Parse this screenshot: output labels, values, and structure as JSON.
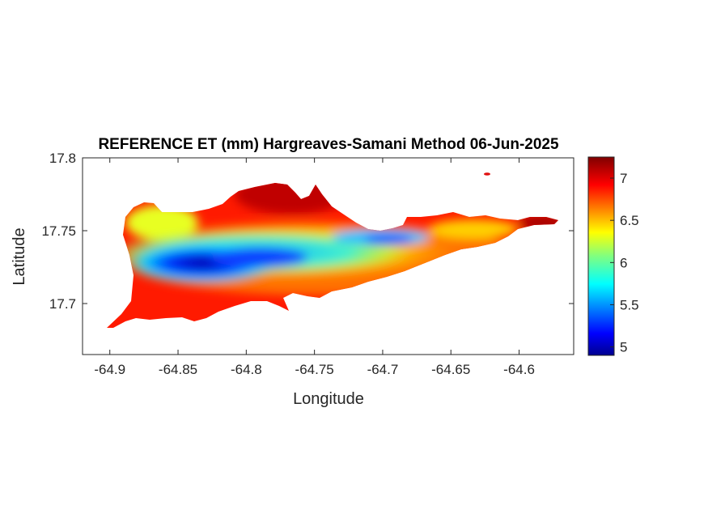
{
  "figure": {
    "title": "REFERENCE ET (mm) Hargreaves-Samani Method  06-Jun-2025",
    "xlabel": "Longitude",
    "ylabel": "Latitude"
  },
  "axes": {
    "x_ticks": [
      -64.9,
      -64.85,
      -64.8,
      -64.75,
      -64.7,
      -64.65,
      -64.6
    ],
    "x_tick_labels": [
      "-64.9",
      "-64.85",
      "-64.8",
      "-64.75",
      "-64.7",
      "-64.65",
      "-64.6"
    ],
    "y_ticks": [
      17.8,
      17.75,
      17.7
    ],
    "y_tick_labels": [
      "17.8",
      "17.75",
      "17.7"
    ],
    "xlim": [
      -64.92,
      -64.56
    ],
    "ylim": [
      17.665,
      17.8
    ]
  },
  "colorbar": {
    "colormap": "jet",
    "range": [
      4.9,
      7.25
    ],
    "ticks": [
      5,
      5.5,
      6,
      6.5,
      7
    ],
    "tick_labels": [
      "5",
      "5.5",
      "6",
      "6.5",
      "7"
    ]
  },
  "colors": {
    "jet_dark_red": "#800000",
    "jet_red": "#ff2000",
    "jet_yellow": "#ffe000",
    "jet_cyan": "#20e0ff",
    "jet_blue": "#0040ff",
    "jet_dark_blue": "#00008f"
  },
  "chart_data": {
    "type": "heatmap",
    "title": "REFERENCE ET (mm) Hargreaves-Samani Method  06-Jun-2025",
    "xlabel": "Longitude",
    "ylabel": "Latitude",
    "xlim": [
      -64.92,
      -64.56
    ],
    "ylim": [
      17.665,
      17.8
    ],
    "value_range": [
      4.9,
      7.25
    ],
    "unit": "mm",
    "zones": [
      {
        "lon": -64.84,
        "lat": 17.727,
        "value": 4.95
      },
      {
        "lon": -64.8,
        "lat": 17.728,
        "value": 5.3
      },
      {
        "lon": -64.86,
        "lat": 17.735,
        "value": 5.6
      },
      {
        "lon": -64.75,
        "lat": 17.738,
        "value": 5.8
      },
      {
        "lon": -64.7,
        "lat": 17.745,
        "value": 5.7
      },
      {
        "lon": -64.86,
        "lat": 17.755,
        "value": 6.3
      },
      {
        "lon": -64.65,
        "lat": 17.748,
        "value": 6.4
      },
      {
        "lon": -64.62,
        "lat": 17.749,
        "value": 6.2
      },
      {
        "lon": -64.78,
        "lat": 17.768,
        "value": 7.1
      },
      {
        "lon": -64.8,
        "lat": 17.705,
        "value": 7.0
      },
      {
        "lon": -64.88,
        "lat": 17.693,
        "value": 7.05
      },
      {
        "lon": -64.58,
        "lat": 17.752,
        "value": 7.2
      }
    ]
  }
}
